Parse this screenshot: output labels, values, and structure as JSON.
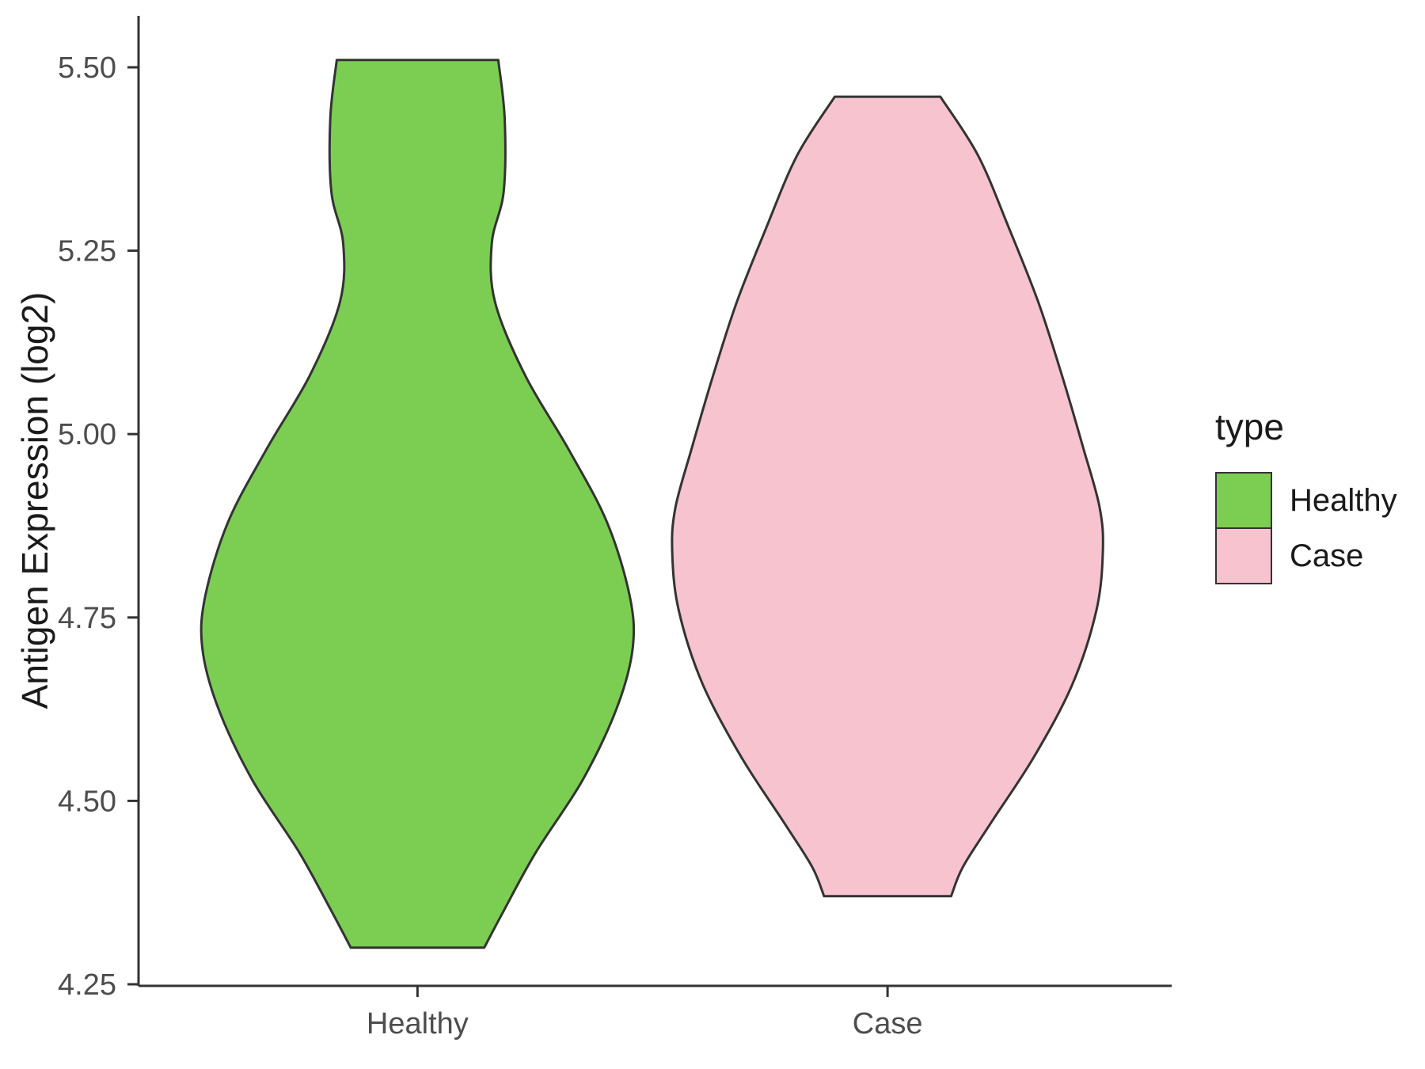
{
  "chart_data": {
    "type": "violin",
    "title": "",
    "xlabel": "",
    "ylabel": "Antigen Expression (log2)",
    "ylim": [
      4.25,
      5.5
    ],
    "grid": false,
    "axis_color": "#333333",
    "tick_label_color": "#4D4D4D",
    "y_ticks": {
      "values": [
        4.25,
        4.5,
        4.75,
        5.0,
        5.25,
        5.5
      ],
      "labels": [
        "4.25",
        "4.50",
        "4.75",
        "5.00",
        "5.25",
        "5.50"
      ]
    },
    "categories": [
      "Healthy",
      "Case"
    ],
    "legend": {
      "title": "type",
      "position": "right",
      "entries": [
        {
          "label": "Healthy",
          "color": "#7CCE52"
        },
        {
          "label": "Case",
          "color": "#F6C3CF"
        }
      ]
    },
    "series": [
      {
        "name": "Healthy",
        "fill": "#7CCE52",
        "outline": "#333333",
        "value_range": [
          4.3,
          5.51
        ],
        "profile": [
          [
            5.51,
            0.375
          ],
          [
            5.43,
            0.405
          ],
          [
            5.33,
            0.4
          ],
          [
            5.26,
            0.345
          ],
          [
            5.18,
            0.36
          ],
          [
            5.08,
            0.5
          ],
          [
            4.98,
            0.7
          ],
          [
            4.88,
            0.88
          ],
          [
            4.78,
            0.985
          ],
          [
            4.71,
            1.0
          ],
          [
            4.63,
            0.93
          ],
          [
            4.53,
            0.77
          ],
          [
            4.43,
            0.55
          ],
          [
            4.35,
            0.4
          ],
          [
            4.3,
            0.31
          ]
        ]
      },
      {
        "name": "Case",
        "fill": "#F6C3CF",
        "outline": "#333333",
        "value_range": [
          4.37,
          5.46
        ],
        "profile": [
          [
            5.46,
            0.245
          ],
          [
            5.38,
            0.42
          ],
          [
            5.28,
            0.565
          ],
          [
            5.18,
            0.7
          ],
          [
            5.08,
            0.81
          ],
          [
            4.98,
            0.91
          ],
          [
            4.9,
            0.985
          ],
          [
            4.84,
            1.0
          ],
          [
            4.76,
            0.97
          ],
          [
            4.66,
            0.86
          ],
          [
            4.56,
            0.68
          ],
          [
            4.47,
            0.48
          ],
          [
            4.41,
            0.35
          ],
          [
            4.37,
            0.295
          ]
        ]
      }
    ]
  }
}
